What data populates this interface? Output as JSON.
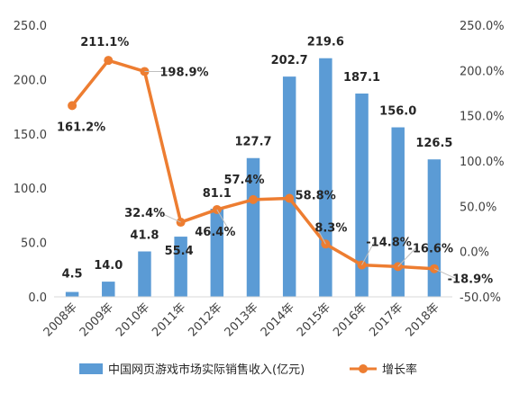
{
  "chart_data": {
    "type": "bar",
    "categories": [
      "2008年",
      "2009年",
      "2010年",
      "2011年",
      "2012年",
      "2013年",
      "2014年",
      "2015年",
      "2016年",
      "2017年",
      "2018年"
    ],
    "series": [
      {
        "name": "中国网页游戏市场实际销售收入(亿元)",
        "type": "bar",
        "axis": "left",
        "color": "#5B9BD5",
        "values": [
          4.5,
          14.0,
          41.8,
          55.4,
          81.1,
          127.7,
          202.7,
          219.6,
          187.1,
          156.0,
          126.5
        ],
        "labels": [
          "4.5",
          "14.0",
          "41.8",
          "55.4",
          "81.1",
          "127.7",
          "202.7",
          "219.6",
          "187.1",
          "156.0",
          "126.5"
        ]
      },
      {
        "name": "增长率",
        "type": "line",
        "axis": "right",
        "color": "#ED7D31",
        "values": [
          161.2,
          211.1,
          198.9,
          32.4,
          46.4,
          57.4,
          58.8,
          8.3,
          -14.8,
          -16.6,
          -18.9
        ],
        "labels": [
          "161.2%",
          "211.1%",
          "198.9%",
          "32.4%",
          "46.4%",
          "57.4%",
          "58.8%",
          "8.3%",
          "-14.8%",
          "-16.6%",
          "-18.9%"
        ]
      }
    ],
    "y_left": {
      "range": [
        0,
        250
      ],
      "ticks": [
        "0.0",
        "50.0",
        "100.0",
        "150.0",
        "200.0",
        "250.0"
      ]
    },
    "y_right": {
      "range": [
        -50,
        250
      ],
      "ticks": [
        "-50.0%",
        "0.0%",
        "50.0%",
        "100.0%",
        "150.0%",
        "200.0%",
        "250.0%"
      ]
    },
    "grid": false,
    "legend": "bottom"
  }
}
